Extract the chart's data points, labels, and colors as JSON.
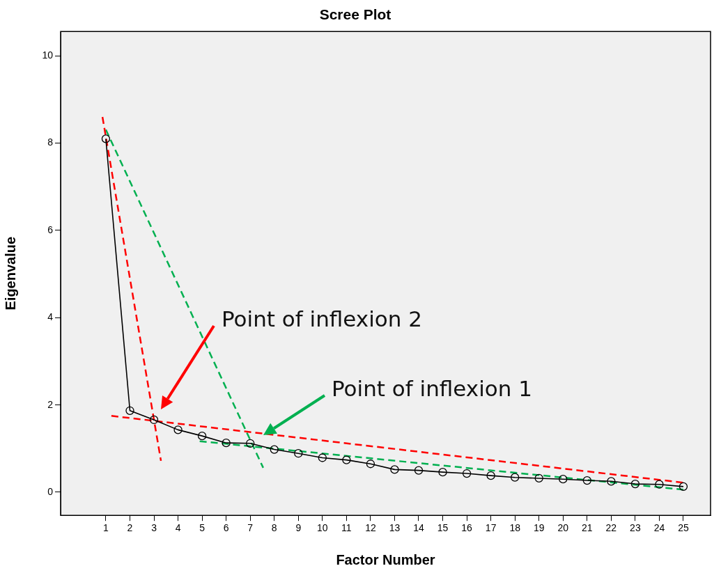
{
  "chart_data": {
    "type": "line",
    "title": "Scree Plot",
    "xlabel": "Factor Number",
    "ylabel": "Eigenvalue",
    "xlim": [
      -0.88,
      26.13
    ],
    "xticks": [
      1,
      2,
      3,
      4,
      5,
      6,
      7,
      8,
      9,
      10,
      11,
      12,
      13,
      14,
      15,
      16,
      17,
      18,
      19,
      20,
      21,
      22,
      23,
      24,
      25
    ],
    "ylim": [
      -0.53,
      10.56
    ],
    "yticks": [
      0,
      2,
      4,
      6,
      8,
      10
    ],
    "grid": false,
    "marker": "circle",
    "line_style": "solid",
    "series": [
      {
        "color": "#000000",
        "x": [
          1,
          2,
          3,
          4,
          5,
          6,
          7,
          8,
          9,
          10,
          11,
          12,
          13,
          14,
          15,
          16,
          17,
          18,
          19,
          20,
          21,
          22,
          23,
          24,
          25
        ],
        "values": [
          8.1,
          1.87,
          1.66,
          1.43,
          1.29,
          1.13,
          1.12,
          0.98,
          0.89,
          0.79,
          0.74,
          0.65,
          0.52,
          0.5,
          0.46,
          0.43,
          0.38,
          0.34,
          0.32,
          0.3,
          0.27,
          0.25,
          0.19,
          0.18,
          0.13
        ]
      },
      {
        "color": "#ff0000",
        "marker": "none",
        "line_style": "dashed",
        "x": [
          0.86,
          3.29
        ],
        "values": [
          8.6,
          0.72
        ]
      },
      {
        "color": "#ff0000",
        "marker": "none",
        "line_style": "dashed",
        "x": [
          1.23,
          25
        ],
        "values": [
          1.75,
          0.22
        ]
      },
      {
        "color": "#00b050",
        "marker": "none",
        "line_style": "dashed",
        "x": [
          1,
          7.54
        ],
        "values": [
          8.31,
          0.56
        ]
      },
      {
        "color": "#00b050",
        "marker": "none",
        "line_style": "dashed",
        "x": [
          4.9,
          25
        ],
        "values": [
          1.17,
          0.06
        ]
      }
    ],
    "annotations": [
      "Point of inflexion 2",
      "Point of inflexion 1"
    ]
  }
}
